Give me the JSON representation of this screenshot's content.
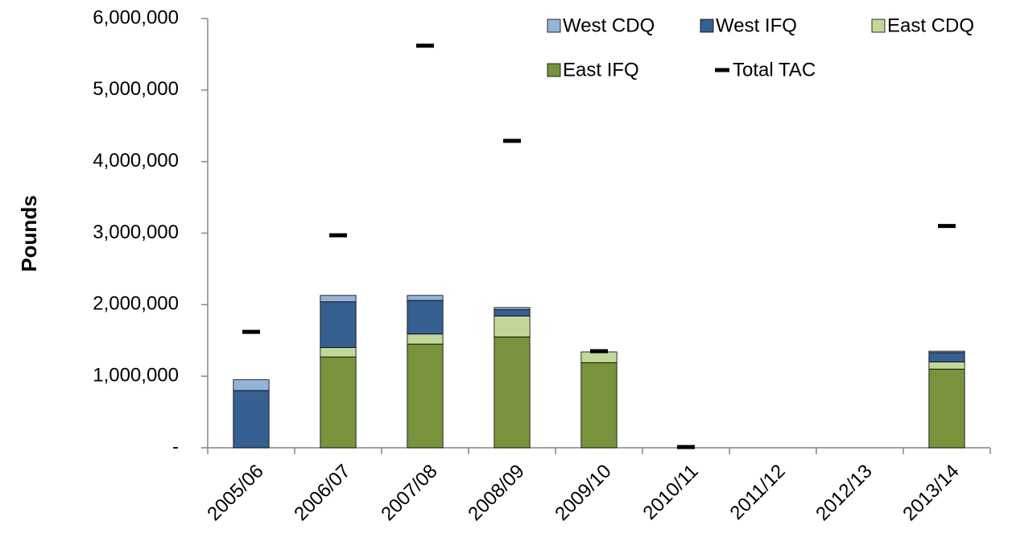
{
  "chart_data": {
    "type": "stacked-bar",
    "ylabel": "Pounds",
    "categories": [
      "2005/06",
      "2006/07",
      "2007/08",
      "2008/09",
      "2009/10",
      "2010/11",
      "2011/12",
      "2012/13",
      "2013/14"
    ],
    "series": [
      {
        "name": "East IFQ",
        "color": "#77933c",
        "values": [
          0,
          1270000,
          1450000,
          1550000,
          1190000,
          0,
          0,
          0,
          1100000
        ]
      },
      {
        "name": "East CDQ",
        "color": "#c4d79b",
        "values": [
          0,
          130000,
          140000,
          290000,
          150000,
          0,
          0,
          0,
          100000
        ]
      },
      {
        "name": "West IFQ",
        "color": "#376092",
        "values": [
          800000,
          640000,
          470000,
          90000,
          0,
          0,
          0,
          0,
          130000
        ]
      },
      {
        "name": "West CDQ",
        "color": "#95b3d7",
        "values": [
          150000,
          90000,
          70000,
          30000,
          0,
          0,
          0,
          0,
          20000
        ]
      }
    ],
    "markers": {
      "name": "Total TAC",
      "color": "#000000",
      "values": [
        1620000,
        2970000,
        5620000,
        4290000,
        1350000,
        10000,
        null,
        null,
        3100000
      ]
    },
    "ylim": [
      0,
      6000000
    ],
    "yticks": [
      {
        "value": 0,
        "label": "-"
      },
      {
        "value": 1000000,
        "label": "1,000,000"
      },
      {
        "value": 2000000,
        "label": "2,000,000"
      },
      {
        "value": 3000000,
        "label": "3,000,000"
      },
      {
        "value": 4000000,
        "label": "4,000,000"
      },
      {
        "value": 5000000,
        "label": "5,000,000"
      },
      {
        "value": 6000000,
        "label": "6,000,000"
      }
    ],
    "legend": "top-right",
    "grid": false
  }
}
